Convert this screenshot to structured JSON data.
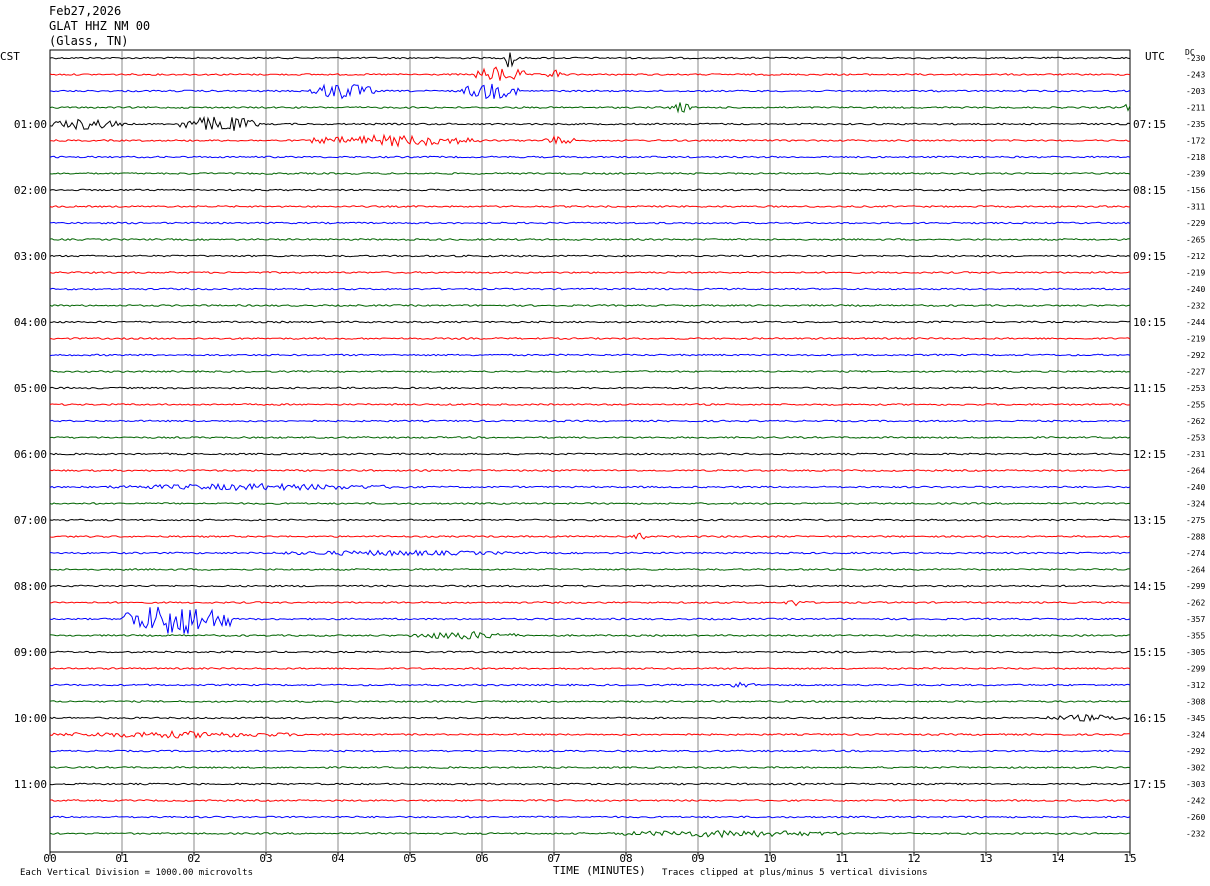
{
  "header": {
    "date": "Feb27,2026",
    "station": "GLAT HHZ NM 00",
    "location": "(Glass, TN)"
  },
  "left_timezone": "CST",
  "right_timezone": "UTC",
  "dc_label": "DC",
  "footer": {
    "scale_note": "Each Vertical Division = 1000.00 microvolts",
    "xlabel": "TIME (MINUTES)",
    "clip_note": "Traces clipped at plus/minus 5 vertical divisions"
  },
  "colors": {
    "trace_cycle": [
      "#000000",
      "#ff0000",
      "#0000ff",
      "#006400"
    ],
    "grid": "#888888"
  },
  "chart_data": {
    "type": "line",
    "title": "GLAT HHZ NM 00",
    "xlabel": "TIME (MINUTES)",
    "xlim": [
      0,
      15
    ],
    "x_ticks": [
      "00",
      "01",
      "02",
      "03",
      "04",
      "05",
      "06",
      "07",
      "08",
      "09",
      "10",
      "11",
      "12",
      "13",
      "14",
      "15"
    ],
    "left_hour_labels": [
      "01:00",
      "02:00",
      "03:00",
      "04:00",
      "05:00",
      "06:00",
      "07:00",
      "08:00",
      "09:00",
      "10:00",
      "11:00"
    ],
    "right_hour_labels": [
      "07:15",
      "08:15",
      "09:15",
      "10:15",
      "11:15",
      "12:15",
      "13:15",
      "14:15",
      "15:15",
      "16:15",
      "17:15"
    ],
    "dc_offsets": [
      -230,
      -243,
      -203,
      -211,
      -235,
      -172,
      -218,
      -239,
      -156,
      -311,
      -229,
      -265,
      -212,
      -219,
      -240,
      -232,
      -244,
      -219,
      -292,
      -227,
      -253,
      -255,
      -262,
      -253,
      -231,
      -264,
      -240,
      -324,
      -275,
      -288,
      -274,
      -264,
      -299,
      -262,
      -357,
      -355,
      -305,
      -299,
      -312,
      -308,
      -345,
      -324,
      -292,
      -302,
      -303,
      -242,
      -260,
      -232
    ],
    "events": [
      {
        "trace": 0,
        "start_min": 6.3,
        "end_min": 6.5,
        "amp": 5
      },
      {
        "trace": 1,
        "start_min": 5.9,
        "end_min": 6.6,
        "amp": 3
      },
      {
        "trace": 1,
        "start_min": 6.9,
        "end_min": 7.1,
        "amp": 2
      },
      {
        "trace": 2,
        "start_min": 3.6,
        "end_min": 4.5,
        "amp": 3
      },
      {
        "trace": 2,
        "start_min": 5.7,
        "end_min": 6.5,
        "amp": 3
      },
      {
        "trace": 3,
        "start_min": 8.6,
        "end_min": 8.9,
        "amp": 2
      },
      {
        "trace": 3,
        "start_min": 14.9,
        "end_min": 15.0,
        "amp": 2
      },
      {
        "trace": 4,
        "start_min": 0.0,
        "end_min": 1.0,
        "amp": 2
      },
      {
        "trace": 4,
        "start_min": 1.8,
        "end_min": 2.9,
        "amp": 3
      },
      {
        "trace": 5,
        "start_min": 3.6,
        "end_min": 6.0,
        "amp": 2
      },
      {
        "trace": 5,
        "start_min": 6.8,
        "end_min": 7.3,
        "amp": 1.5
      },
      {
        "trace": 26,
        "start_min": 0.8,
        "end_min": 5.0,
        "amp": 1.2
      },
      {
        "trace": 29,
        "start_min": 8.1,
        "end_min": 8.3,
        "amp": 1.2
      },
      {
        "trace": 30,
        "start_min": 3.0,
        "end_min": 6.5,
        "amp": 1
      },
      {
        "trace": 33,
        "start_min": 10.2,
        "end_min": 10.5,
        "amp": 1.3
      },
      {
        "trace": 34,
        "start_min": 1.0,
        "end_min": 2.5,
        "amp": 6
      },
      {
        "trace": 35,
        "start_min": 5.0,
        "end_min": 6.5,
        "amp": 1.5
      },
      {
        "trace": 38,
        "start_min": 9.3,
        "end_min": 9.8,
        "amp": 1.2
      },
      {
        "trace": 40,
        "start_min": 13.8,
        "end_min": 15.0,
        "amp": 1.2
      },
      {
        "trace": 41,
        "start_min": 0.0,
        "end_min": 3.5,
        "amp": 1.2
      },
      {
        "trace": 47,
        "start_min": 7.8,
        "end_min": 11.0,
        "amp": 1.3
      }
    ]
  }
}
